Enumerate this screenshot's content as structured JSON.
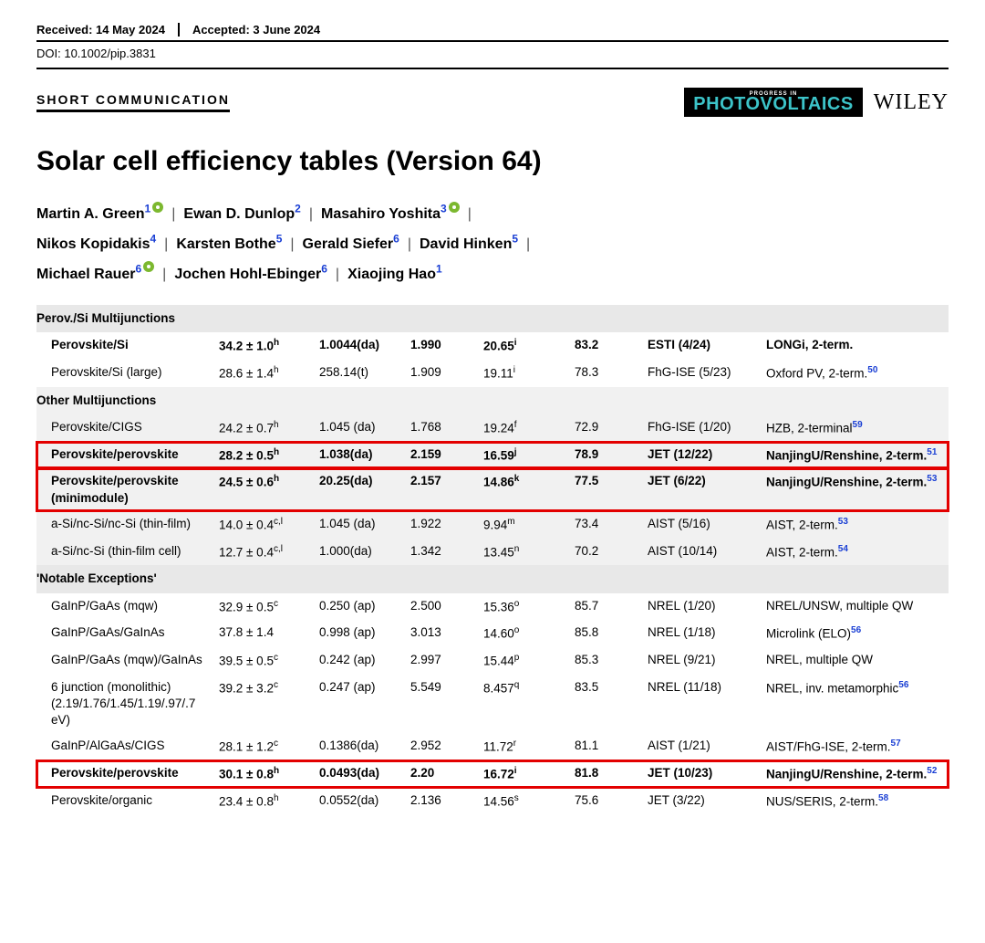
{
  "meta": {
    "received": "Received: 14 May 2024",
    "accepted": "Accepted: 3 June 2024",
    "doi": "DOI: 10.1002/pip.3831"
  },
  "header": {
    "short_comm": "SHORT COMMUNICATION",
    "pv_progress": "PROGRESS IN",
    "pv_label": "PHOTOVOLTAICS",
    "wiley": "WILEY"
  },
  "title": "Solar cell efficiency tables (Version 64)",
  "authors": [
    {
      "name": "Martin A. Green",
      "aff": "1",
      "orcid": true
    },
    {
      "name": "Ewan D. Dunlop",
      "aff": "2",
      "orcid": false
    },
    {
      "name": "Masahiro Yoshita",
      "aff": "3",
      "orcid": true
    },
    {
      "name": "Nikos Kopidakis",
      "aff": "4",
      "orcid": false
    },
    {
      "name": "Karsten Bothe",
      "aff": "5",
      "orcid": false
    },
    {
      "name": "Gerald Siefer",
      "aff": "6",
      "orcid": false
    },
    {
      "name": "David Hinken",
      "aff": "5",
      "orcid": false
    },
    {
      "name": "Michael Rauer",
      "aff": "6",
      "orcid": true
    },
    {
      "name": "Jochen Hohl-Ebinger",
      "aff": "6",
      "orcid": false
    },
    {
      "name": "Xiaojing Hao",
      "aff": "1",
      "orcid": false
    }
  ],
  "sections": [
    {
      "heading": "Perov./Si Multijunctions",
      "striped": false,
      "rows": [
        {
          "bold": true,
          "hl": false,
          "cells": [
            "Perovskite/Si",
            "34.2 ± 1.0",
            "h",
            "1.0044(da)",
            "1.990",
            "20.65",
            "i",
            "83.2",
            "ESTI (4/24)",
            "LONGi, 2-term.",
            ""
          ]
        },
        {
          "bold": false,
          "hl": false,
          "cells": [
            "Perovskite/Si (large)",
            "28.6 ± 1.4",
            "h",
            "258.14(t)",
            "1.909",
            "19.11",
            "i",
            "78.3",
            "FhG-ISE (5/23)",
            "Oxford PV, 2-term.",
            "50"
          ]
        }
      ]
    },
    {
      "heading": "Other Multijunctions",
      "striped": true,
      "rows": [
        {
          "bold": false,
          "hl": false,
          "cells": [
            "Perovskite/CIGS",
            "24.2 ± 0.7",
            "h",
            "1.045 (da)",
            "1.768",
            "19.24",
            "f",
            "72.9",
            "FhG-ISE (1/20)",
            "HZB, 2-terminal",
            "59"
          ]
        },
        {
          "bold": true,
          "hl": true,
          "cells": [
            "Perovskite/perovskite",
            "28.2 ± 0.5",
            "h",
            "1.038(da)",
            "2.159",
            "16.59",
            "j",
            "78.9",
            "JET (12/22)",
            "NanjingU/Renshine, 2-term.",
            "51"
          ]
        },
        {
          "bold": true,
          "hl": true,
          "cells": [
            "Perovskite/perovskite (minimodule)",
            "24.5 ± 0.6",
            "h",
            "20.25(da)",
            "2.157",
            "14.86",
            "k",
            "77.5",
            "JET (6/22)",
            "NanjingU/Renshine, 2-term.",
            "53"
          ]
        },
        {
          "bold": false,
          "hl": false,
          "cells": [
            "a-Si/nc-Si/nc-Si (thin-film)",
            "14.0 ± 0.4",
            "c,l",
            "1.045 (da)",
            "1.922",
            "9.94",
            "m",
            "73.4",
            "AIST (5/16)",
            "AIST, 2-term.",
            "53"
          ]
        },
        {
          "bold": false,
          "hl": false,
          "cells": [
            "a-Si/nc-Si (thin-film cell)",
            "12.7 ± 0.4",
            "c,l",
            "1.000(da)",
            "1.342",
            "13.45",
            "n",
            "70.2",
            "AIST (10/14)",
            "AIST, 2-term.",
            "54"
          ]
        }
      ]
    },
    {
      "heading": "'Notable Exceptions'",
      "striped": false,
      "rows": [
        {
          "bold": false,
          "hl": false,
          "cells": [
            "GaInP/GaAs (mqw)",
            "32.9 ± 0.5",
            "c",
            "0.250 (ap)",
            "2.500",
            "15.36",
            "o",
            "85.7",
            "NREL (1/20)",
            "NREL/UNSW, multiple QW",
            ""
          ]
        },
        {
          "bold": false,
          "hl": false,
          "cells": [
            "GaInP/GaAs/GaInAs",
            "37.8 ± 1.4",
            "",
            "0.998 (ap)",
            "3.013",
            "14.60",
            "o",
            "85.8",
            "NREL (1/18)",
            "Microlink (ELO)",
            "56"
          ]
        },
        {
          "bold": false,
          "hl": false,
          "cells": [
            "GaInP/GaAs (mqw)/GaInAs",
            "39.5 ± 0.5",
            "c",
            "0.242 (ap)",
            "2.997",
            "15.44",
            "p",
            "85.3",
            "NREL (9/21)",
            "NREL, multiple QW",
            ""
          ]
        },
        {
          "bold": false,
          "hl": false,
          "cells": [
            "6 junction (monolithic) (2.19/1.76/1.45/1.19/.97/.7 eV)",
            "39.2 ± 3.2",
            "c",
            "0.247 (ap)",
            "5.549",
            "8.457",
            "q",
            "83.5",
            "NREL (11/18)",
            "NREL, inv. metamorphic",
            "56"
          ]
        },
        {
          "bold": false,
          "hl": false,
          "cells": [
            "GaInP/AlGaAs/CIGS",
            "28.1 ± 1.2",
            "c",
            "0.1386(da)",
            "2.952",
            "11.72",
            "r",
            "81.1",
            "AIST (1/21)",
            "AIST/FhG-ISE, 2-term.",
            "57"
          ]
        },
        {
          "bold": true,
          "hl": true,
          "cells": [
            "Perovskite/perovskite",
            "30.1 ± 0.8",
            "h",
            "0.0493(da)",
            "2.20",
            "16.72",
            "i",
            "81.8",
            "JET (10/23)",
            "NanjingU/Renshine, 2-term.",
            "52"
          ]
        },
        {
          "bold": false,
          "hl": false,
          "cells": [
            "Perovskite/organic",
            "23.4 ± 0.8",
            "h",
            "0.0552(da)",
            "2.136",
            "14.56",
            "s",
            "75.6",
            "JET (3/22)",
            "NUS/SERIS, 2-term.",
            "58"
          ]
        }
      ]
    }
  ],
  "col_widths": [
    "col0",
    "col1",
    "col2",
    "col3",
    "col4",
    "col5",
    "col6",
    "col7"
  ]
}
